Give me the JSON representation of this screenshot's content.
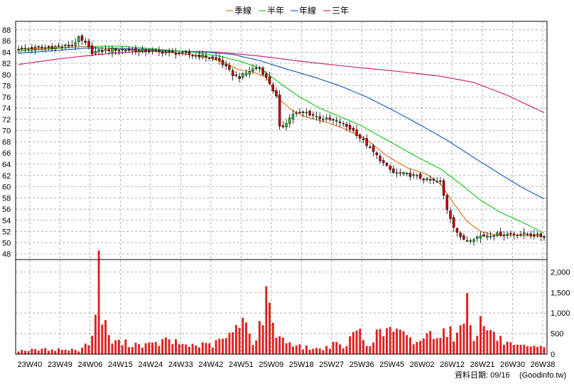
{
  "colors": {
    "background": "#ffffff",
    "grid": "#a0a0a0",
    "frame": "#000000",
    "up_candle": "#2fbf2f",
    "down_candle": "#cc0000",
    "volume_bar": "#e02020",
    "ma_quarter": "#e07820",
    "ma_half": "#22c822",
    "ma_year": "#2060c0",
    "ma_three": "#d02870"
  },
  "legend": [
    {
      "label": "季線",
      "color": "#e07820"
    },
    {
      "label": "半年",
      "color": "#22c822"
    },
    {
      "label": "年線",
      "color": "#2060c0"
    },
    {
      "label": "三年",
      "color": "#d02870"
    }
  ],
  "footer": {
    "date_text": "資料日期: 09/16",
    "source_text": "(Goodinfo.tw)"
  },
  "chart_data": {
    "type": "candlestick-weekly",
    "x_tick_labels": [
      "23W40",
      "23W49",
      "24W06",
      "24W15",
      "24W24",
      "24W33",
      "24W42",
      "24W51",
      "25W09",
      "25W18",
      "25W27",
      "25W36",
      "25W45",
      "26W02",
      "26W12",
      "26W21",
      "26W30",
      "26W38"
    ],
    "price_axis": {
      "ticks": [
        48,
        50,
        52,
        54,
        56,
        58,
        60,
        62,
        64,
        66,
        68,
        70,
        72,
        74,
        76,
        78,
        80,
        82,
        84,
        86,
        88
      ],
      "range": [
        47,
        89.5
      ],
      "grid": true
    },
    "volume_axis": {
      "ticks": [
        "0",
        "500",
        "1,000",
        "1,500",
        "2,000"
      ],
      "tick_values": [
        0,
        500,
        1000,
        1500,
        2000
      ],
      "range": [
        0,
        2300
      ],
      "grid": true
    },
    "close_keyframes": [
      [
        0,
        84.6
      ],
      [
        8,
        84.8
      ],
      [
        16,
        85.2
      ],
      [
        18,
        86.5
      ],
      [
        20,
        85.5
      ],
      [
        22,
        84.0
      ],
      [
        28,
        84.5
      ],
      [
        38,
        84.3
      ],
      [
        48,
        83.8
      ],
      [
        56,
        83.2
      ],
      [
        60,
        82.5
      ],
      [
        64,
        80.0
      ],
      [
        66,
        79.5
      ],
      [
        70,
        81.0
      ],
      [
        72,
        81.2
      ],
      [
        75,
        78.5
      ],
      [
        77,
        76.0
      ],
      [
        78,
        70.5
      ],
      [
        79,
        70.8
      ],
      [
        82,
        73.0
      ],
      [
        86,
        73.2
      ],
      [
        90,
        72.3
      ],
      [
        96,
        71.5
      ],
      [
        100,
        70.0
      ],
      [
        104,
        67.5
      ],
      [
        110,
        63.5
      ],
      [
        112,
        62.5
      ],
      [
        118,
        62.0
      ],
      [
        122,
        61.2
      ],
      [
        126,
        60.8
      ],
      [
        128,
        56.0
      ],
      [
        130,
        53.0
      ],
      [
        132,
        50.8
      ],
      [
        134,
        50.5
      ],
      [
        138,
        51.2
      ],
      [
        142,
        51.5
      ],
      [
        150,
        51.6
      ],
      [
        154,
        51.4
      ],
      [
        157,
        51.1
      ]
    ],
    "volume_keyframes": [
      [
        0,
        90
      ],
      [
        10,
        120
      ],
      [
        18,
        100
      ],
      [
        22,
        350
      ],
      [
        24,
        2280
      ],
      [
        25,
        850
      ],
      [
        26,
        650
      ],
      [
        28,
        300
      ],
      [
        34,
        250
      ],
      [
        40,
        220
      ],
      [
        44,
        330
      ],
      [
        50,
        220
      ],
      [
        58,
        220
      ],
      [
        64,
        500
      ],
      [
        66,
        650
      ],
      [
        68,
        1100
      ],
      [
        70,
        200
      ],
      [
        72,
        650
      ],
      [
        74,
        1300
      ],
      [
        75,
        1000
      ],
      [
        78,
        400
      ],
      [
        84,
        180
      ],
      [
        90,
        120
      ],
      [
        94,
        230
      ],
      [
        98,
        180
      ],
      [
        101,
        650
      ],
      [
        104,
        230
      ],
      [
        108,
        520
      ],
      [
        112,
        600
      ],
      [
        118,
        280
      ],
      [
        124,
        520
      ],
      [
        128,
        600
      ],
      [
        131,
        400
      ],
      [
        134,
        1300
      ],
      [
        136,
        450
      ],
      [
        138,
        750
      ],
      [
        140,
        650
      ],
      [
        143,
        380
      ],
      [
        148,
        180
      ],
      [
        157,
        150
      ]
    ],
    "ma_quarter_keyframes": [
      [
        0,
        84.5
      ],
      [
        20,
        85.0
      ],
      [
        28,
        84.6
      ],
      [
        48,
        83.8
      ],
      [
        56,
        83.2
      ],
      [
        62,
        82.0
      ],
      [
        66,
        80.8
      ],
      [
        70,
        80.5
      ],
      [
        74,
        79.5
      ],
      [
        78,
        75.5
      ],
      [
        82,
        73.5
      ],
      [
        86,
        72.4
      ],
      [
        92,
        71.5
      ],
      [
        98,
        70.2
      ],
      [
        104,
        68.4
      ],
      [
        110,
        65.5
      ],
      [
        116,
        63.4
      ],
      [
        122,
        62.2
      ],
      [
        126,
        60.5
      ],
      [
        130,
        57.0
      ],
      [
        134,
        53.8
      ],
      [
        138,
        52.0
      ],
      [
        142,
        51.4
      ],
      [
        150,
        51.3
      ],
      [
        157,
        51.1
      ]
    ],
    "ma_half_keyframes": [
      [
        0,
        84.2
      ],
      [
        20,
        85.0
      ],
      [
        30,
        85.1
      ],
      [
        40,
        84.6
      ],
      [
        52,
        84.0
      ],
      [
        60,
        83.3
      ],
      [
        66,
        82.4
      ],
      [
        72,
        81.2
      ],
      [
        78,
        78.5
      ],
      [
        84,
        76.0
      ],
      [
        90,
        74.0
      ],
      [
        96,
        72.5
      ],
      [
        102,
        71.0
      ],
      [
        108,
        69.0
      ],
      [
        114,
        67.0
      ],
      [
        120,
        65.0
      ],
      [
        126,
        63.2
      ],
      [
        132,
        60.5
      ],
      [
        138,
        57.6
      ],
      [
        144,
        55.4
      ],
      [
        150,
        53.8
      ],
      [
        157,
        51.7
      ]
    ],
    "ma_year_keyframes": [
      [
        0,
        83.8
      ],
      [
        20,
        84.7
      ],
      [
        30,
        84.7
      ],
      [
        44,
        84.3
      ],
      [
        56,
        84.0
      ],
      [
        64,
        83.6
      ],
      [
        72,
        82.5
      ],
      [
        80,
        81.0
      ],
      [
        88,
        79.6
      ],
      [
        96,
        78.0
      ],
      [
        104,
        76.0
      ],
      [
        112,
        73.6
      ],
      [
        120,
        71.0
      ],
      [
        128,
        68.3
      ],
      [
        136,
        65.2
      ],
      [
        144,
        62.2
      ],
      [
        150,
        60.0
      ],
      [
        157,
        57.8
      ]
    ],
    "ma_three_keyframes": [
      [
        0,
        81.8
      ],
      [
        12,
        82.8
      ],
      [
        24,
        83.6
      ],
      [
        36,
        84.1
      ],
      [
        48,
        84.2
      ],
      [
        60,
        84.0
      ],
      [
        72,
        83.3
      ],
      [
        84,
        82.4
      ],
      [
        96,
        81.6
      ],
      [
        106,
        81.0
      ],
      [
        116,
        80.4
      ],
      [
        126,
        79.7
      ],
      [
        136,
        78.6
      ],
      [
        146,
        76.3
      ],
      [
        157,
        73.2
      ]
    ]
  }
}
